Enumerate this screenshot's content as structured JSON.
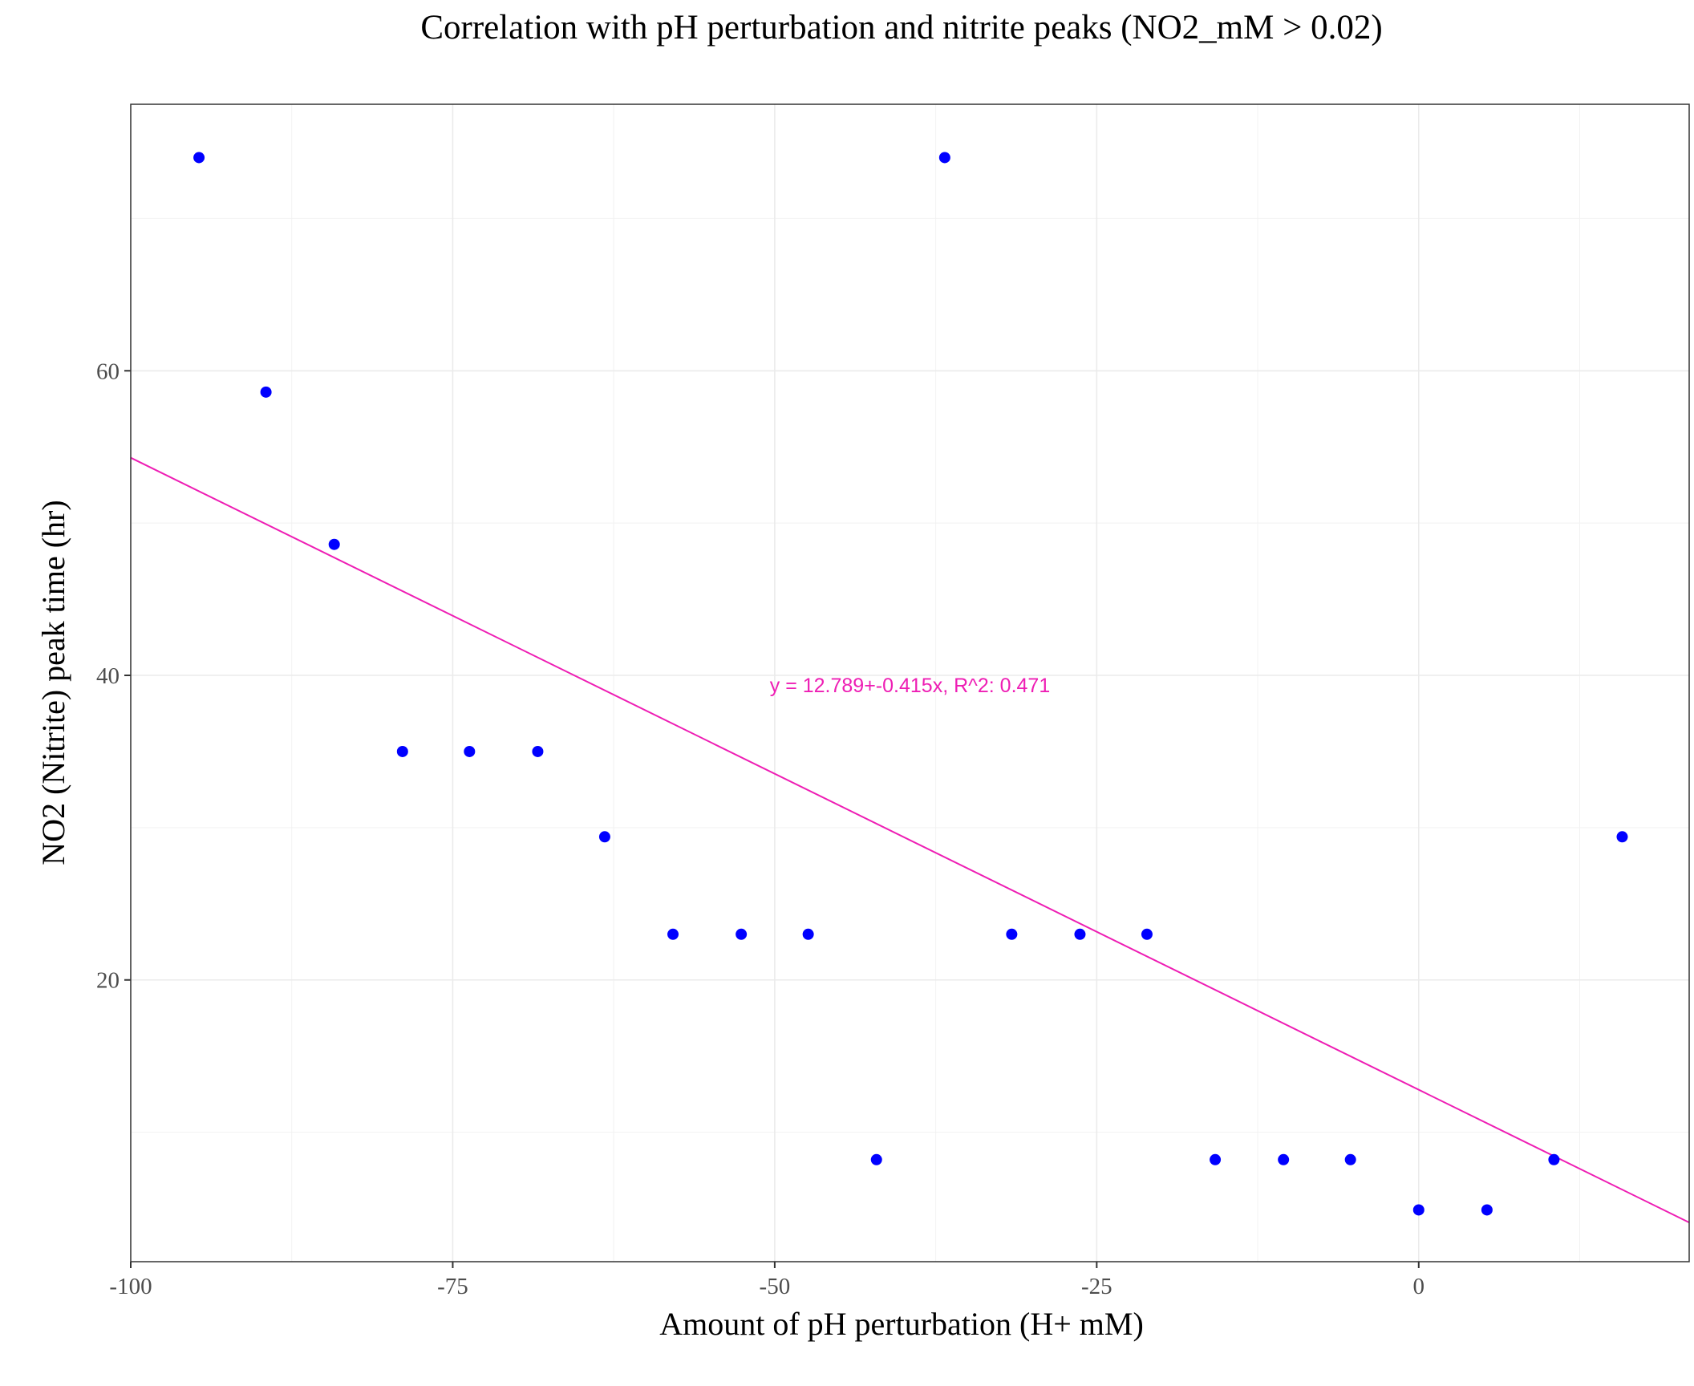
{
  "chart_data": {
    "type": "scatter",
    "title": "Correlation with pH perturbation and nitrite peaks (NO2_mM > 0.02)",
    "xlabel": "Amount of pH perturbation (H+ mM)",
    "ylabel": "NO2 (Nitrite) peak time (hr)",
    "xlim": [
      -100,
      21
    ],
    "ylim": [
      1.5,
      77.5
    ],
    "x_ticks": [
      -100,
      -75,
      -50,
      -25,
      0
    ],
    "x_tick_labels": [
      "-100",
      "-75",
      "-50",
      "-25",
      "0"
    ],
    "x_minor_ticks": [
      -87.5,
      -62.5,
      -37.5,
      -12.5,
      12.5
    ],
    "y_ticks": [
      20,
      40,
      60
    ],
    "y_tick_labels": [
      "20",
      "40",
      "60"
    ],
    "y_minor_ticks": [
      10,
      30,
      50,
      70
    ],
    "grid": true,
    "series": [
      {
        "color": "#0000ff",
        "points": [
          {
            "x": -94.7,
            "y": 74
          },
          {
            "x": -89.5,
            "y": 58.6
          },
          {
            "x": -84.2,
            "y": 48.6
          },
          {
            "x": -78.9,
            "y": 35
          },
          {
            "x": -73.7,
            "y": 35
          },
          {
            "x": -68.4,
            "y": 35
          },
          {
            "x": -63.2,
            "y": 29.4
          },
          {
            "x": -57.9,
            "y": 23
          },
          {
            "x": -52.6,
            "y": 23
          },
          {
            "x": -47.4,
            "y": 23
          },
          {
            "x": -42.1,
            "y": 8.2
          },
          {
            "x": -36.8,
            "y": 74
          },
          {
            "x": -31.6,
            "y": 23
          },
          {
            "x": -26.3,
            "y": 23
          },
          {
            "x": -21.1,
            "y": 23
          },
          {
            "x": -15.8,
            "y": 8.2
          },
          {
            "x": -10.5,
            "y": 8.2
          },
          {
            "x": -5.3,
            "y": 8.2
          },
          {
            "x": 0,
            "y": 4.9
          },
          {
            "x": 5.3,
            "y": 4.9
          },
          {
            "x": 10.5,
            "y": 8.2
          },
          {
            "x": 15.8,
            "y": 29.4
          }
        ]
      }
    ],
    "fit_line": {
      "intercept": 12.789,
      "slope": -0.415,
      "color": "#ee1eb4",
      "label": "y = 12.789+-0.415x,  R^2: 0.471",
      "label_x": -39.5,
      "label_y": 38.9
    }
  }
}
